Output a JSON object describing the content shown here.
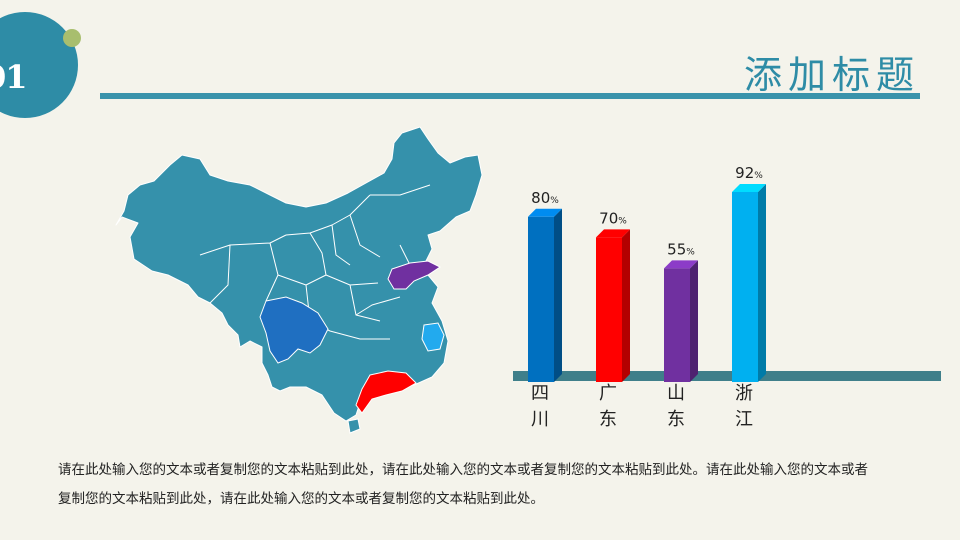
{
  "slide": {
    "number": "01",
    "title": "添加标题",
    "body": "请在此处输入您的文本或者复制您的文本粘贴到此处，请在此处输入您的文本或者复制您的文本粘贴到此处。请在此处输入您的文本或者复制您的文本粘贴到此处，请在此处输入您的文本或者复制您的文本粘贴到此处。"
  },
  "colors": {
    "theme": "#2e8ca6",
    "map_base": "#3591ab",
    "sichuan": "#1f6fc1",
    "guangdong": "#ff0000",
    "shandong": "#7030a0",
    "zhejiang": "#22aaee"
  },
  "chart_data": {
    "type": "bar",
    "categories": [
      "四川",
      "广东",
      "山东",
      "浙江"
    ],
    "values": [
      80,
      70,
      55,
      92
    ],
    "value_suffix": "%",
    "colors": [
      "#0070c0",
      "#ff0000",
      "#7030a0",
      "#00b0f0"
    ],
    "ylim": [
      0,
      100
    ]
  }
}
